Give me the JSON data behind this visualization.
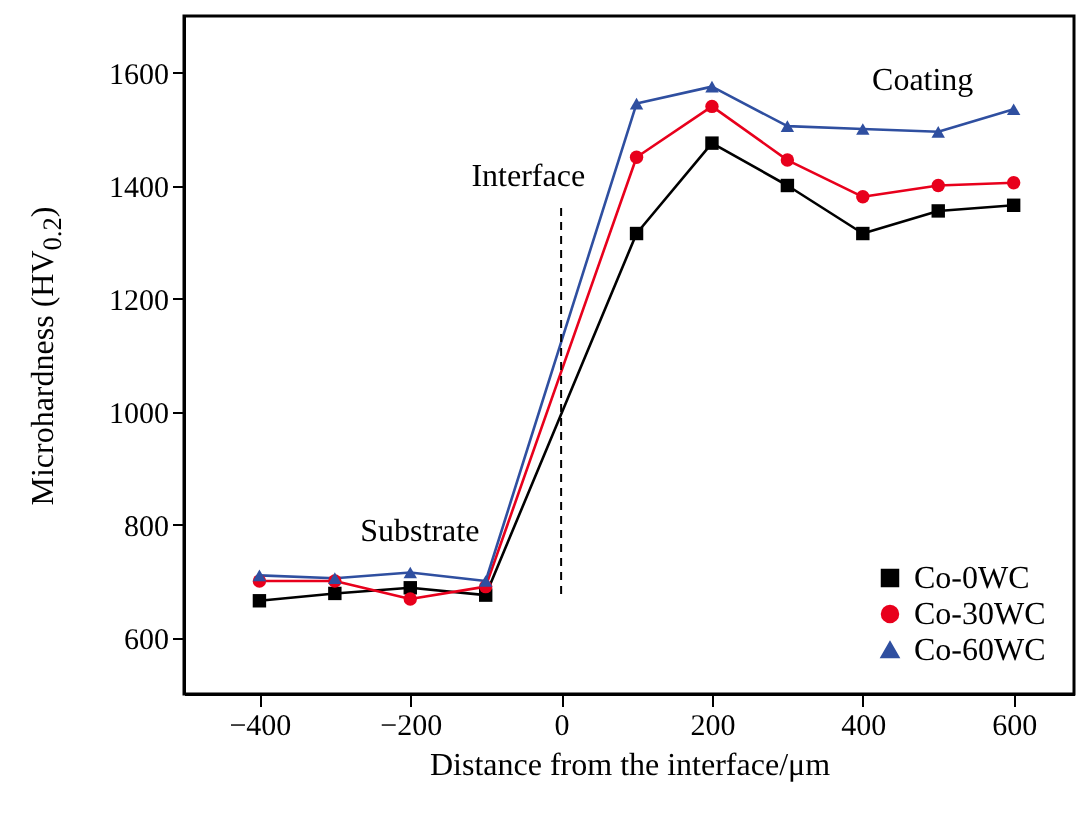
{
  "chart_data": {
    "type": "line",
    "xlabel": "Distance from the interface/μm",
    "ylabel": "Microhardness (HV$_{0.2}$)",
    "x": [
      -400,
      -300,
      -200,
      -100,
      100,
      200,
      300,
      400,
      500,
      600
    ],
    "series": [
      {
        "name": "Co-0WC",
        "color": "#000000",
        "marker": "square",
        "values": [
          665,
          678,
          688,
          675,
          1315,
          1475,
          1400,
          1315,
          1355,
          1365
        ]
      },
      {
        "name": "Co-30WC",
        "color": "#e8001c",
        "marker": "circle",
        "values": [
          700,
          700,
          668,
          690,
          1450,
          1540,
          1445,
          1380,
          1400,
          1405
        ]
      },
      {
        "name": "Co-60WC",
        "color": "#2f4fa0",
        "marker": "triangle",
        "values": [
          710,
          705,
          715,
          700,
          1545,
          1575,
          1505,
          1500,
          1495,
          1535
        ]
      }
    ],
    "xlim": [
      -500,
      680
    ],
    "xticks": [
      -400,
      -200,
      0,
      200,
      400,
      600
    ],
    "ylim": [
      500,
      1700
    ],
    "yticks": [
      600,
      800,
      1000,
      1200,
      1400,
      1600
    ],
    "ref_lines": [
      {
        "axis": "x",
        "value": 0,
        "label": "Interface",
        "line_style": "dashed",
        "color": "#000000"
      }
    ],
    "annotations": [
      "Substrate",
      "Coating"
    ],
    "legend": "bottom right",
    "grid": false
  }
}
